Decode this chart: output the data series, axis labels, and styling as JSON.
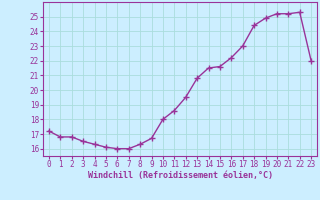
{
  "x": [
    0,
    1,
    2,
    3,
    4,
    5,
    6,
    7,
    8,
    9,
    10,
    11,
    12,
    13,
    14,
    15,
    16,
    17,
    18,
    19,
    20,
    21,
    22,
    23
  ],
  "y": [
    17.2,
    16.8,
    16.8,
    16.5,
    16.3,
    16.1,
    16.0,
    16.0,
    16.3,
    16.7,
    18.0,
    18.6,
    19.5,
    20.8,
    21.5,
    21.6,
    22.2,
    23.0,
    24.4,
    24.9,
    25.2,
    25.2,
    25.3,
    22.0
  ],
  "x_ticks": [
    0,
    1,
    2,
    3,
    4,
    5,
    6,
    7,
    8,
    9,
    10,
    11,
    12,
    13,
    14,
    15,
    16,
    17,
    18,
    19,
    20,
    21,
    22,
    23
  ],
  "y_ticks": [
    16,
    17,
    18,
    19,
    20,
    21,
    22,
    23,
    24,
    25
  ],
  "ylim": [
    15.5,
    26.0
  ],
  "xlim": [
    -0.5,
    23.5
  ],
  "xlabel": "Windchill (Refroidissement éolien,°C)",
  "line_color": "#993399",
  "bg_color": "#cceeff",
  "grid_color": "#aadddd",
  "tick_color": "#993399",
  "marker": "+",
  "linewidth": 1.0,
  "markersize": 4,
  "markeredgewidth": 1.0
}
